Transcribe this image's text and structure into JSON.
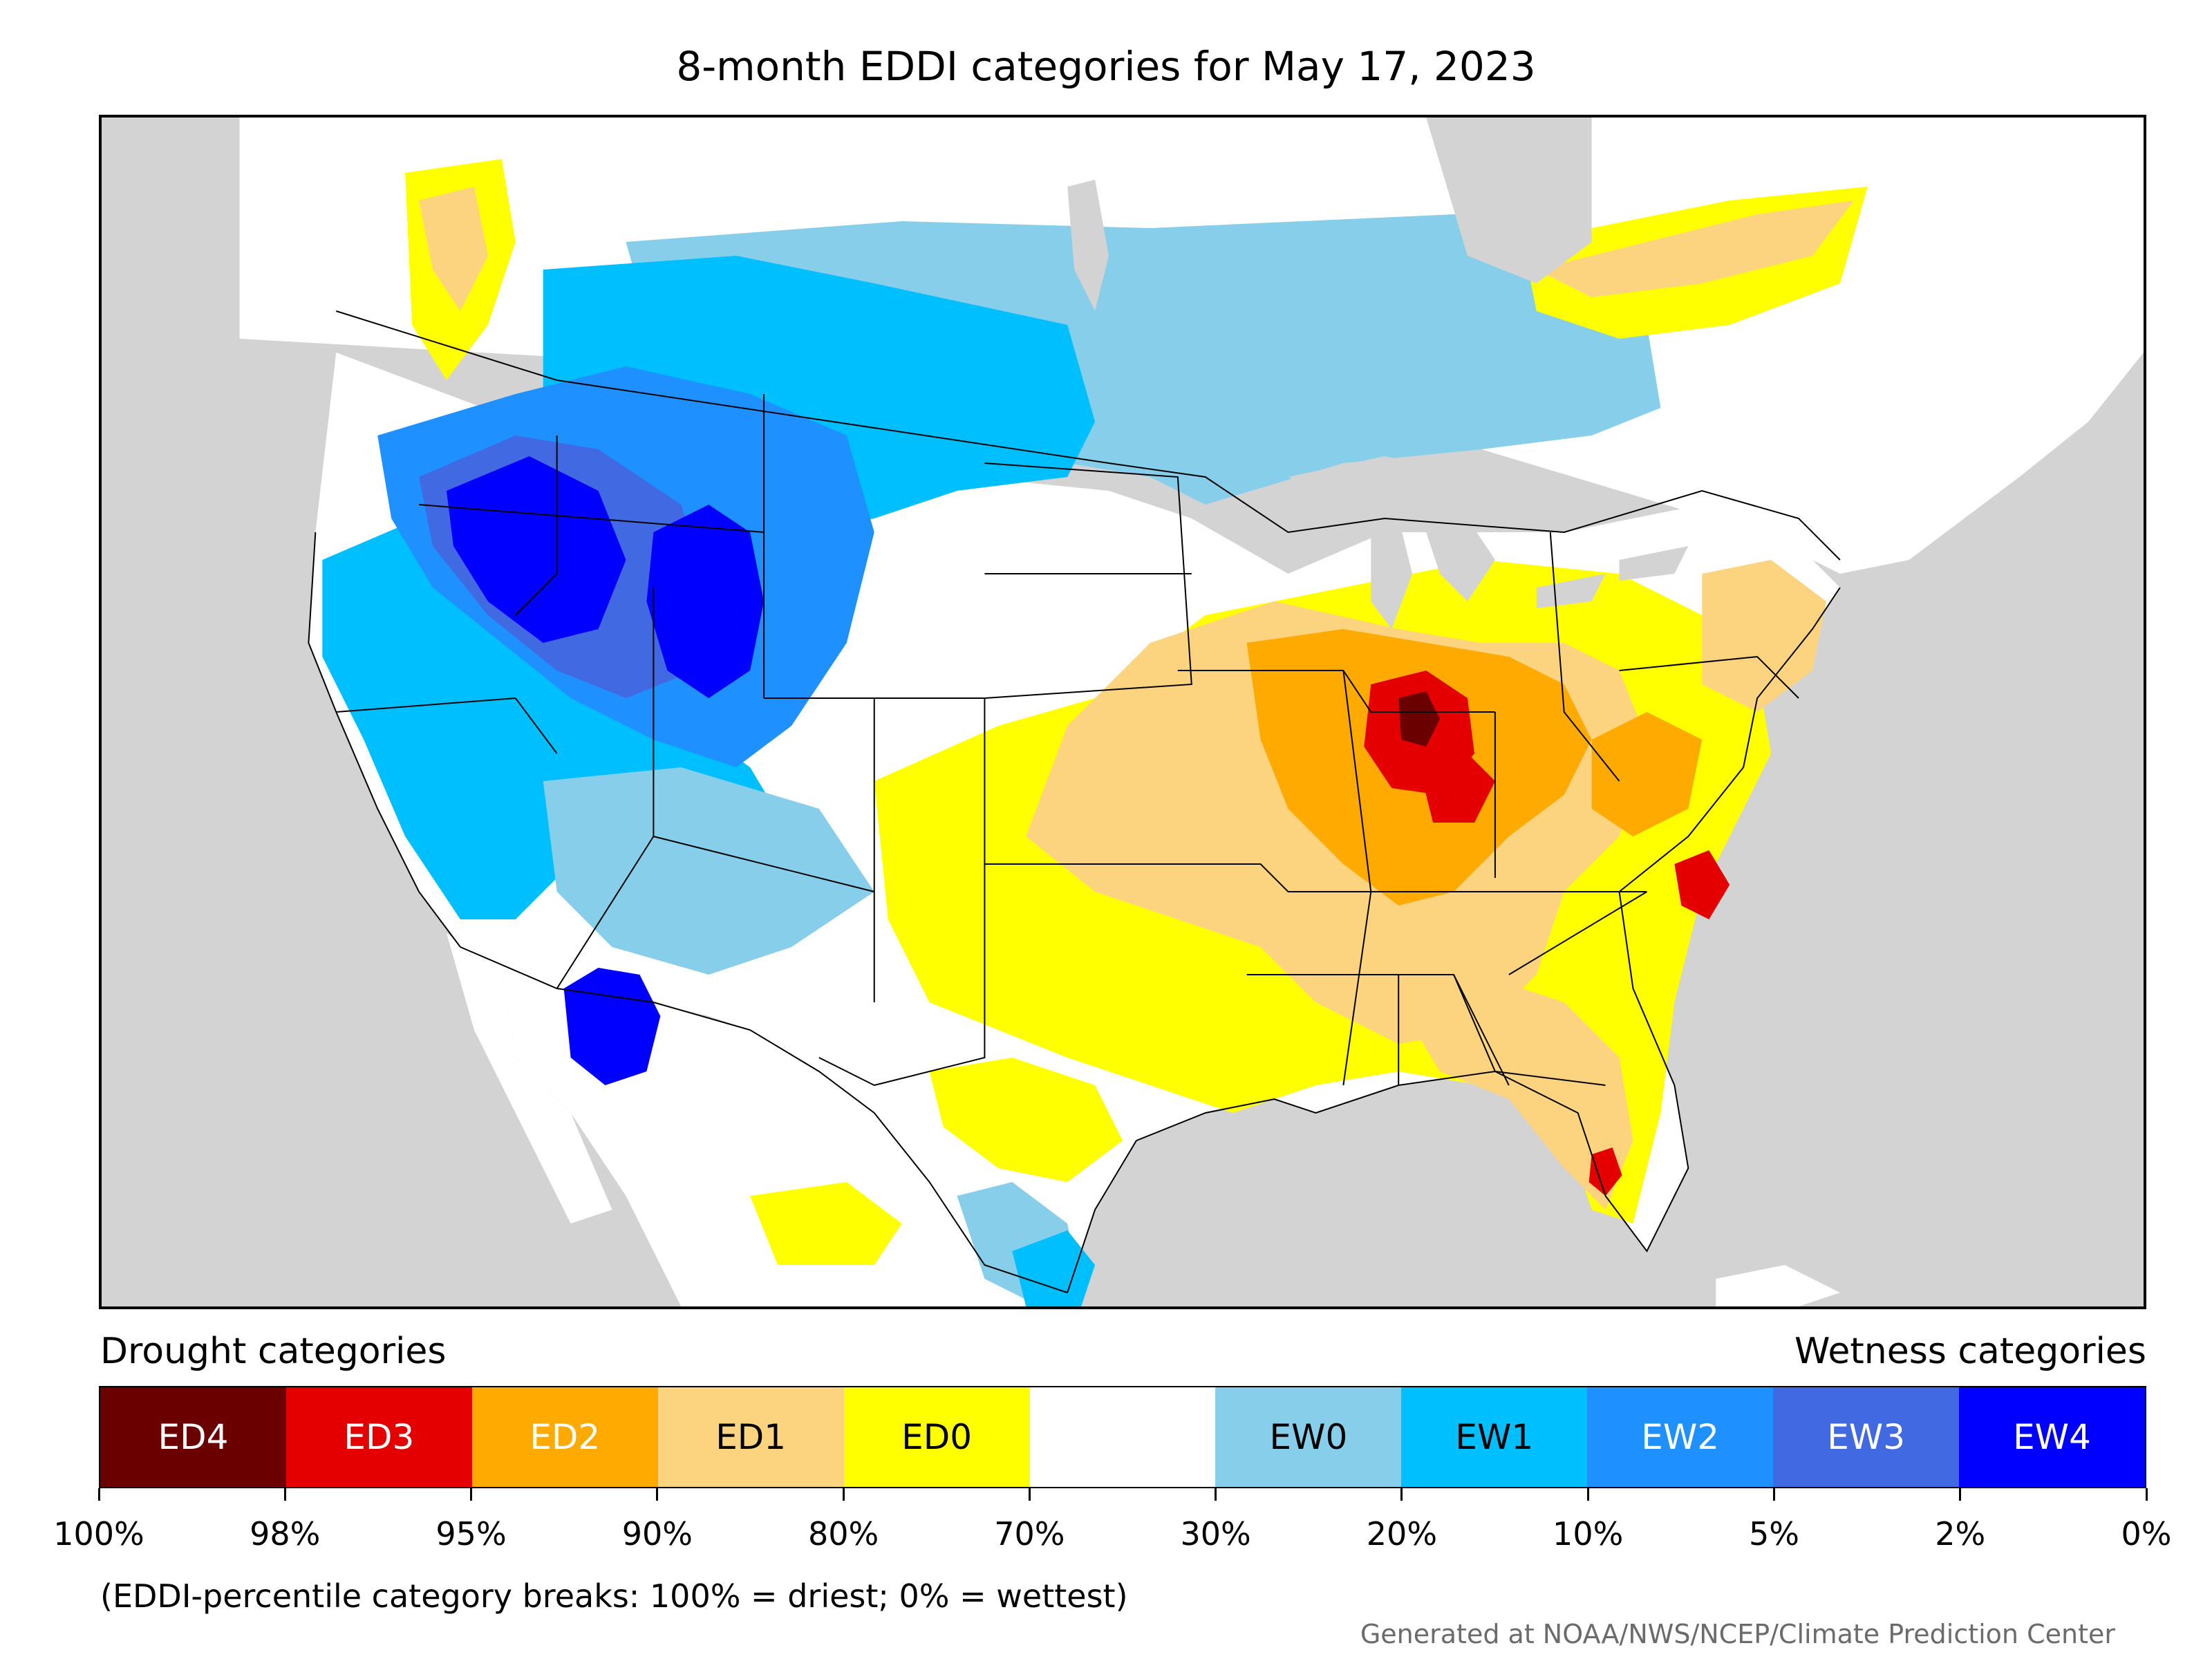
{
  "title": "8-month EDDI categories for May 17, 2023",
  "map": {
    "region": "CONUS",
    "background_color": "#d3d3d3",
    "land_color": "#ffffff"
  },
  "legend": {
    "left_heading": "Drought categories",
    "right_heading": "Wetness categories",
    "categories": [
      {
        "label": "ED4",
        "color": "#6b0000",
        "text_color": "#ffffff"
      },
      {
        "label": "ED3",
        "color": "#e50000",
        "text_color": "#ffffff"
      },
      {
        "label": "ED2",
        "color": "#ffaa00",
        "text_color": "#ffffff"
      },
      {
        "label": "ED1",
        "color": "#fcd37f",
        "text_color": "#000000"
      },
      {
        "label": "ED0",
        "color": "#ffff00",
        "text_color": "#000000"
      },
      {
        "label": "",
        "color": "#ffffff",
        "text_color": "#000000"
      },
      {
        "label": "EW0",
        "color": "#87ceeb",
        "text_color": "#000000"
      },
      {
        "label": "EW1",
        "color": "#00bfff",
        "text_color": "#000000"
      },
      {
        "label": "EW2",
        "color": "#1e90ff",
        "text_color": "#ffffff"
      },
      {
        "label": "EW3",
        "color": "#4169e1",
        "text_color": "#ffffff"
      },
      {
        "label": "EW4",
        "color": "#0000ff",
        "text_color": "#ffffff"
      }
    ],
    "ticks": [
      "100%",
      "98%",
      "95%",
      "90%",
      "80%",
      "70%",
      "30%",
      "20%",
      "10%",
      "5%",
      "2%",
      "0%"
    ]
  },
  "footnote": "(EDDI-percentile category breaks: 100% = driest; 0% = wettest)",
  "credit": "Generated at NOAA/NWS/NCEP/Climate Prediction Center"
}
